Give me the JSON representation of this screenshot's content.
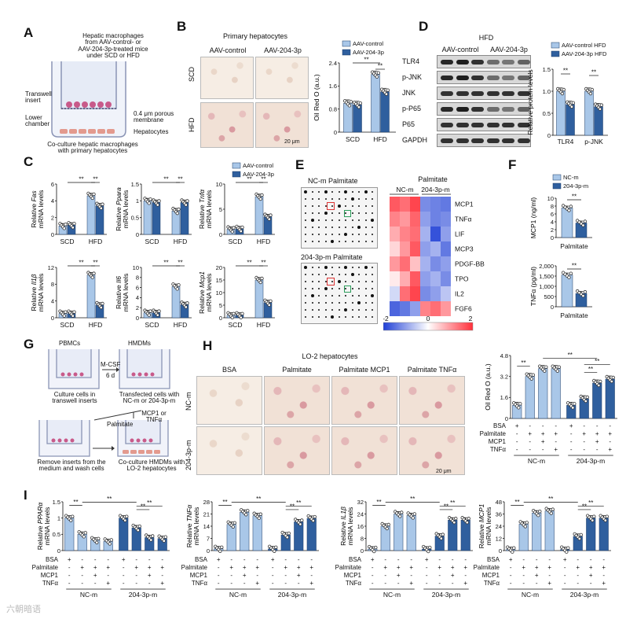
{
  "panels": {
    "A": {
      "letter": "A",
      "header": "Hepatic macrophages\nfrom AAV-control- or\nAAV-204-3p-treated mice\nunder SCD or HFD",
      "transwell": "Transwell\ninsert",
      "lower_chamber": "Lower\nchamber",
      "membrane": "0.4 μm porous\nmembrane",
      "hepatocytes": "Hepatocytes",
      "caption": "Co-culture hepatic macrophages\nwith primary hepatocytes"
    },
    "B": {
      "letter": "B",
      "title": "Primary hepatocytes",
      "col1": "AAV-control",
      "col2": "AAV-204-3p",
      "row1": "SCD",
      "row2": "HFD",
      "scale": "20 μm",
      "legend": [
        "AAV-control",
        "AAV-204-3p"
      ],
      "ylabel": "Oil Red O (a.u.)",
      "yticks": [
        "0",
        "0.8",
        "1.6",
        "2.4"
      ],
      "xticks": [
        "SCD",
        "HFD"
      ],
      "sig": [
        "**",
        "**"
      ]
    },
    "D": {
      "letter": "D",
      "title": "HFD",
      "col1": "AAV-control",
      "col2": "AAV-204-3p",
      "rows": [
        "TLR4",
        "p-JNK",
        "JNK",
        "p-P65",
        "P65",
        "GAPDH"
      ],
      "legend": [
        "AAV-control HFD",
        "AAV-204-3p HFD"
      ],
      "ylabel": "Relative protein levels",
      "yticks": [
        "0",
        "0.5",
        "1.0",
        "1.5"
      ],
      "xticks": [
        "TLR4",
        "p-JNK"
      ],
      "sig": [
        "**",
        "**"
      ]
    },
    "C": {
      "letter": "C",
      "legend": [
        "AAV-control",
        "AAV-204-3p"
      ],
      "xticks": [
        "SCD",
        "HFD"
      ],
      "gene_prefix": "Relative ",
      "gene_suffix": "mRNA levels",
      "sig": "**"
    },
    "E": {
      "letter": "E",
      "array1": "NC-m Palmitate",
      "array2": "204-3p-m Palmitate",
      "heatmap_title": "Palmitate",
      "heat_cols": [
        "NC-m",
        "204-3p-m"
      ],
      "heat_rows": [
        "MCP1",
        "TNFα",
        "LIF",
        "MCP3",
        "PDGF-BB",
        "TPO",
        "IL2",
        "FGF6"
      ],
      "scale_ticks": [
        "-2",
        "0",
        "2"
      ]
    },
    "F": {
      "letter": "F",
      "legend": [
        "NC-m",
        "204-3p-m"
      ],
      "top_ylabel": "MCP1 (ng/ml)",
      "top_yticks": [
        "0",
        "2",
        "4",
        "6",
        "8",
        "10"
      ],
      "bottom_ylabel": "TNFα (pg/ml)",
      "bottom_yticks": [
        "0",
        "500",
        "1,000",
        "1,500",
        "2,000"
      ],
      "xlabel": "Palmitate",
      "sig": "**"
    },
    "G": {
      "letter": "G",
      "pbmcs": "PBMCs",
      "hmdms": "HMDMs",
      "mcsf": "M-CSF",
      "days": "6 d",
      "culture": "Culture cells in\ntranswell inserts",
      "transfected": "Transfected cells with\nNC-m or 204-3p-m",
      "palmitate": "Palmitate",
      "mcp1_or": "MCP1 or\nTNFα",
      "remove": "Remove inserts from the\nmedium and wash cells",
      "coculture": "Co-culture HMDMs with\nLO-2 hepatocytes"
    },
    "H": {
      "letter": "H",
      "title": "LO-2 hepatocytes",
      "cols": [
        "BSA",
        "Palmitate",
        "Palmitate MCP1",
        "Palmitate TNFα"
      ],
      "rows": [
        "NC-m",
        "204-3p-m"
      ],
      "scale": "20 μm",
      "ylabel": "Oil Red O (a.u.)",
      "yticks": [
        "0",
        "1.6",
        "3.2",
        "4.8"
      ]
    },
    "I": {
      "letter": "I"
    },
    "treatment": {
      "rows": [
        "BSA",
        "Palmitate",
        "MCP1",
        "TNFα"
      ],
      "signs": [
        [
          "+",
          "-",
          "-",
          "-",
          "+",
          "-",
          "-",
          "-"
        ],
        [
          "-",
          "+",
          "+",
          "+",
          "-",
          "+",
          "+",
          "+"
        ],
        [
          "-",
          "-",
          "+",
          "-",
          "-",
          "-",
          "+",
          "-"
        ],
        [
          "-",
          "-",
          "-",
          "+",
          "-",
          "-",
          "-",
          "+"
        ]
      ],
      "groups": [
        "NC-m",
        "204-3p-m"
      ]
    }
  },
  "colors": {
    "light_bar": "#a9c7e8",
    "dark_bar": "#2f5f9e",
    "heat_high": "#e8303a",
    "heat_low": "#1f3fd6"
  },
  "watermark": "六朝暗语",
  "chart_data": [
    {
      "type": "bar",
      "id": "B-oil-red",
      "categories": [
        "SCD",
        "HFD"
      ],
      "series": [
        {
          "name": "AAV-control",
          "values": [
            1.0,
            2.0
          ]
        },
        {
          "name": "AAV-204-3p",
          "values": [
            0.95,
            1.4
          ]
        }
      ],
      "ylabel": "Oil Red O (a.u.)",
      "ylim": [
        0,
        2.4
      ]
    },
    {
      "type": "bar",
      "id": "D-protein",
      "categories": [
        "TLR4",
        "p-JNK"
      ],
      "series": [
        {
          "name": "AAV-control HFD",
          "values": [
            1.0,
            1.0
          ]
        },
        {
          "name": "AAV-204-3p HFD",
          "values": [
            0.7,
            0.65
          ]
        }
      ],
      "ylabel": "Relative protein levels",
      "ylim": [
        0,
        1.5
      ]
    },
    {
      "type": "bar",
      "id": "C-Fas",
      "gene": "Fas",
      "categories": [
        "SCD",
        "HFD"
      ],
      "series": [
        {
          "name": "AAV-control",
          "values": [
            1.0,
            4.6
          ]
        },
        {
          "name": "AAV-204-3p",
          "values": [
            1.1,
            3.4
          ]
        }
      ],
      "ylim": [
        0,
        6
      ],
      "yticks": [
        0,
        2,
        4,
        6
      ]
    },
    {
      "type": "bar",
      "id": "C-Ppara",
      "gene": "Ppara",
      "categories": [
        "SCD",
        "HFD"
      ],
      "series": [
        {
          "name": "AAV-control",
          "values": [
            1.0,
            0.7
          ]
        },
        {
          "name": "AAV-204-3p",
          "values": [
            0.95,
            0.95
          ]
        }
      ],
      "ylim": [
        0,
        1.5
      ],
      "yticks": [
        0,
        0.5,
        1.0,
        1.5
      ]
    },
    {
      "type": "bar",
      "id": "C-Tnfa",
      "gene": "Tnfα",
      "categories": [
        "SCD",
        "HFD"
      ],
      "series": [
        {
          "name": "AAV-control",
          "values": [
            1.0,
            7.5
          ]
        },
        {
          "name": "AAV-204-3p",
          "values": [
            1.1,
            3.5
          ]
        }
      ],
      "ylim": [
        0,
        10
      ],
      "yticks": [
        0,
        5,
        10
      ]
    },
    {
      "type": "bar",
      "id": "C-Il1b",
      "gene": "Il1β",
      "categories": [
        "SCD",
        "HFD"
      ],
      "series": [
        {
          "name": "AAV-control",
          "values": [
            1.0,
            10.2
          ]
        },
        {
          "name": "AAV-204-3p",
          "values": [
            1.0,
            3.0
          ]
        }
      ],
      "ylim": [
        0,
        12
      ],
      "yticks": [
        0,
        4,
        8,
        12
      ]
    },
    {
      "type": "bar",
      "id": "C-Il6",
      "gene": "Il6",
      "categories": [
        "SCD",
        "HFD"
      ],
      "series": [
        {
          "name": "AAV-control",
          "values": [
            1.0,
            6.2
          ]
        },
        {
          "name": "AAV-204-3p",
          "values": [
            1.0,
            2.6
          ]
        }
      ],
      "ylim": [
        0,
        10
      ],
      "yticks": [
        0,
        2,
        4,
        6,
        8,
        10
      ]
    },
    {
      "type": "bar",
      "id": "C-Mcp1",
      "gene": "Mcp1",
      "categories": [
        "SCD",
        "HFD"
      ],
      "series": [
        {
          "name": "AAV-control",
          "values": [
            1.0,
            15.0
          ]
        },
        {
          "name": "AAV-204-3p",
          "values": [
            1.0,
            6.0
          ]
        }
      ],
      "ylim": [
        0,
        20
      ],
      "yticks": [
        0,
        5,
        10,
        15,
        20
      ]
    },
    {
      "type": "heatmap",
      "id": "E-heat",
      "rows": [
        "MCP1",
        "TNFα",
        "LIF",
        "MCP3",
        "PDGF-BB",
        "TPO",
        "IL2",
        "FGF6"
      ],
      "columns": [
        "NC-m",
        "NC-m",
        "NC-m",
        "204-3p-m",
        "204-3p-m",
        "204-3p-m"
      ],
      "values": [
        [
          1.6,
          1.4,
          1.8,
          -1.2,
          -1.3,
          -1.4
        ],
        [
          1.2,
          1.0,
          1.5,
          -1.0,
          -1.3,
          -1.2
        ],
        [
          0.8,
          1.2,
          1.4,
          -0.8,
          -1.8,
          -1.0
        ],
        [
          0.4,
          1.0,
          1.6,
          -1.0,
          -0.8,
          -1.4
        ],
        [
          1.0,
          1.4,
          0.6,
          -0.8,
          -1.2,
          -1.0
        ],
        [
          0.2,
          0.8,
          1.6,
          -1.0,
          -0.8,
          -1.2
        ],
        [
          -0.4,
          1.4,
          1.8,
          -1.2,
          -1.0,
          -0.6
        ],
        [
          -1.6,
          -1.4,
          -1.0,
          1.2,
          1.4,
          1.0
        ]
      ],
      "ylim": [
        -2,
        2
      ]
    },
    {
      "type": "bar",
      "id": "F-MCP1",
      "categories": [
        "NC-m",
        "204-3p-m"
      ],
      "values": [
        7.5,
        3.7
      ],
      "ylabel": "MCP1 (ng/ml)",
      "ylim": [
        0,
        10
      ]
    },
    {
      "type": "bar",
      "id": "F-TNFa",
      "categories": [
        "NC-m",
        "204-3p-m"
      ],
      "values": [
        1550,
        650
      ],
      "ylabel": "TNFα (pg/ml)",
      "ylim": [
        0,
        2000
      ]
    },
    {
      "type": "bar",
      "id": "H-oil-red",
      "values": [
        1.0,
        3.2,
        3.8,
        3.8,
        1.0,
        1.5,
        2.7,
        3.0
      ],
      "ylabel": "Oil Red O (a.u.)",
      "ylim": [
        0,
        4.8
      ]
    },
    {
      "type": "bar",
      "id": "I-PPARa",
      "gene": "PPARα",
      "values": [
        1.0,
        0.5,
        0.32,
        0.28,
        1.0,
        0.7,
        0.4,
        0.37
      ],
      "ylim": [
        0,
        1.5
      ],
      "yticks": [
        0,
        0.5,
        1.0,
        1.5
      ]
    },
    {
      "type": "bar",
      "id": "I-TNFa",
      "gene": "TNFα",
      "values": [
        1.0,
        15.0,
        22.0,
        20.0,
        1.0,
        9.0,
        16.5,
        18.5
      ],
      "ylim": [
        0,
        28
      ],
      "yticks": [
        0,
        7,
        14,
        21,
        28
      ]
    },
    {
      "type": "bar",
      "id": "I-IL1b",
      "gene": "IL1β",
      "values": [
        1.0,
        16.0,
        24.0,
        23.0,
        1.0,
        9.5,
        20.0,
        20.0
      ],
      "ylim": [
        0,
        32
      ],
      "yticks": [
        0,
        8,
        16,
        24,
        32
      ]
    },
    {
      "type": "bar",
      "id": "I-MCP1",
      "gene": "MCP1",
      "values": [
        1.0,
        26.0,
        37.0,
        39.0,
        1.0,
        14.0,
        32.0,
        32.0
      ],
      "ylim": [
        0,
        48
      ],
      "yticks": [
        0,
        12,
        24,
        36,
        48
      ]
    }
  ]
}
